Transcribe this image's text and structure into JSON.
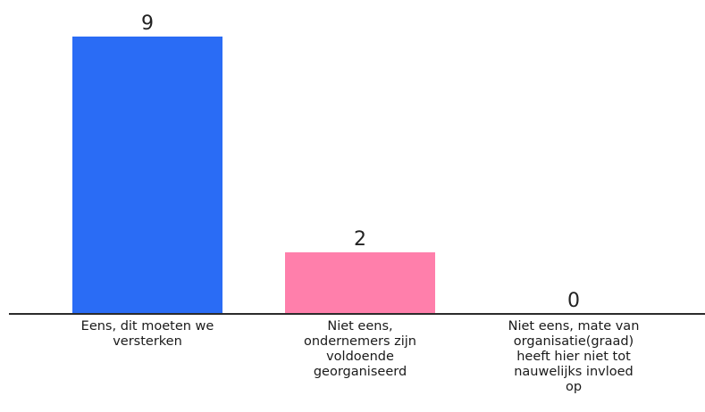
{
  "chart_data": {
    "type": "bar",
    "categories": [
      "Eens, dit moeten we\nversterken",
      "Niet eens,\nondernemers zijn\nvoldoende\ngeorganiseerd",
      "Niet eens, mate van\norganisatie(graad)\nheeft hier niet tot\nnauwelijks invloed\nop"
    ],
    "values": [
      9,
      2,
      0
    ],
    "colors": [
      "#2a6cf5",
      "#ff7fab",
      "#e0e0e0"
    ],
    "title": "",
    "xlabel": "",
    "ylabel": "",
    "ylim": [
      0,
      9
    ],
    "grid": false,
    "legend": "none"
  }
}
